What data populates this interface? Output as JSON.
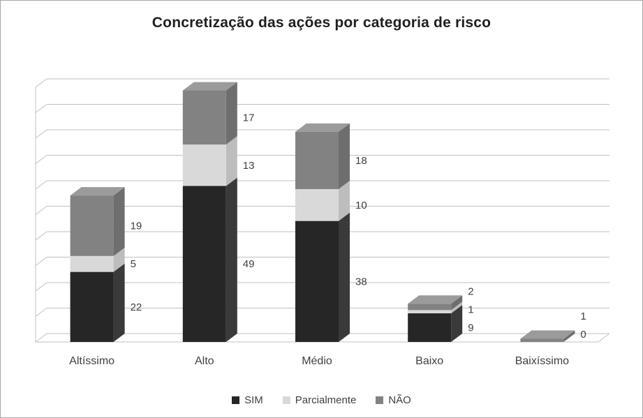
{
  "chart_data": {
    "type": "bar",
    "stacked": true,
    "projection": "3d",
    "title": "Concretização das ações por categoria de risco",
    "categories": [
      "Altíssimo",
      "Alto",
      "Médio",
      "Baixo",
      "Baixíssimo"
    ],
    "series": [
      {
        "name": "SIM",
        "values": [
          22,
          49,
          38,
          9,
          0
        ],
        "color": {
          "front": "#262626",
          "side": "#3a3a3a",
          "top": "#4a4a4a"
        }
      },
      {
        "name": "Parcialmente",
        "values": [
          5,
          13,
          10,
          1,
          0
        ],
        "color": {
          "front": "#d9d9d9",
          "side": "#bdbdbd",
          "top": "#e9e9e9"
        }
      },
      {
        "name": "NÃO",
        "values": [
          19,
          17,
          18,
          2,
          1
        ],
        "color": {
          "front": "#828282",
          "side": "#6e6e6e",
          "top": "#9b9b9b"
        }
      }
    ],
    "totals": [
      46,
      79,
      66,
      12,
      1
    ],
    "ylim": [
      0,
      80
    ],
    "gridline_count": 10,
    "grid": true,
    "data_labels": true,
    "legend_position": "bottom",
    "xlabel": "",
    "ylabel": ""
  },
  "colors": {
    "grid": "#c0c0c0",
    "text": "#404040",
    "border": "#a6a6a6",
    "background": "#ffffff"
  }
}
